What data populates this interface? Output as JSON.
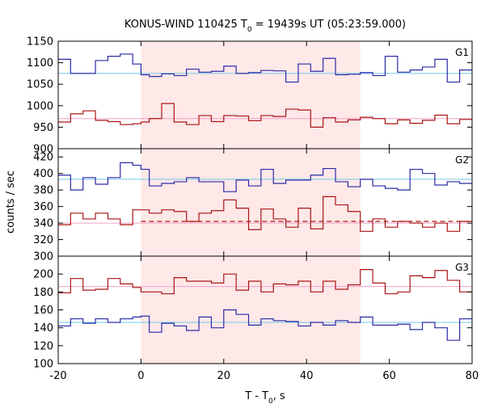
{
  "chart_data": {
    "type": "line",
    "title_parts": [
      "KONUS-WIND 110425 T",
      "0",
      " = 19439s UT (05:23:59.000)"
    ],
    "ylabel": "counts / sec",
    "xlabel_parts": [
      "T - T",
      "0",
      ", s"
    ],
    "xlim": [
      -20,
      80
    ],
    "xticks": [
      -20,
      0,
      20,
      40,
      60,
      80
    ],
    "xtick_labels": [
      "-20",
      "0",
      "20",
      "40",
      "60",
      "80"
    ],
    "highlight": {
      "x_start": 0,
      "x_end": 53,
      "color": "#ffe8e8"
    },
    "colors": {
      "blue": "#2a2aa8",
      "red": "#aa1414",
      "blue_ref": "#70c8e8",
      "red_ref": "#f0a0c8"
    },
    "bin_edges": [
      -20,
      -17,
      -14,
      -11,
      -8,
      -5,
      -2,
      0,
      2,
      5,
      8,
      11,
      14,
      17,
      20,
      23,
      26,
      29,
      32,
      35,
      38,
      41,
      44,
      47,
      50,
      53,
      56,
      59,
      62,
      65,
      68,
      71,
      74,
      77,
      80
    ],
    "panels": [
      {
        "label": "G1",
        "ylim": [
          900,
          1150
        ],
        "yticks": [
          900,
          950,
          1000,
          1050,
          1100,
          1150
        ],
        "ytick_labels": [
          "900",
          "950",
          "1000",
          "1050",
          "1100",
          "1150"
        ],
        "series": [
          {
            "color_key": "blue",
            "ref": 1075,
            "values": [
              1108,
              1075,
              1075,
              1105,
              1115,
              1120,
              1097,
              1072,
              1068,
              1074,
              1070,
              1085,
              1078,
              1080,
              1092,
              1075,
              1077,
              1082,
              1081,
              1055,
              1097,
              1080,
              1110,
              1072,
              1073,
              1077,
              1070,
              1115,
              1078,
              1083,
              1090,
              1108,
              1055,
              1083
            ]
          },
          {
            "color_key": "red",
            "ref": 970,
            "values": [
              962,
              981,
              988,
              966,
              963,
              956,
              958,
              962,
              970,
              1005,
              962,
              956,
              977,
              963,
              977,
              976,
              965,
              977,
              975,
              992,
              990,
              950,
              972,
              962,
              967,
              973,
              970,
              958,
              967,
              959,
              966,
              978,
              958,
              968
            ]
          }
        ]
      },
      {
        "label": "G2",
        "ylim": [
          300,
          430
        ],
        "yticks": [
          300,
          320,
          340,
          360,
          380,
          400,
          420
        ],
        "ytick_labels": [
          "300",
          "320",
          "340",
          "360",
          "380",
          "400",
          "420"
        ],
        "series": [
          {
            "color_key": "blue",
            "ref": 393,
            "values": [
              398,
              380,
              395,
              387,
              395,
              413,
              410,
              405,
              385,
              388,
              390,
              395,
              390,
              390,
              378,
              392,
              385,
              405,
              388,
              392,
              392,
              398,
              406,
              390,
              384,
              393,
              385,
              382,
              380,
              405,
              400,
              386,
              390,
              388
            ]
          },
          {
            "color_key": "red",
            "ref": 340,
            "dashed_ref": 342,
            "dashed_range": [
              0,
              80
            ],
            "values": [
              338,
              352,
              345,
              352,
              345,
              338,
              356,
              356,
              352,
              356,
              354,
              342,
              352,
              355,
              368,
              358,
              332,
              357,
              345,
              335,
              358,
              333,
              372,
              362,
              354,
              330,
              345,
              335,
              342,
              340,
              335,
              340,
              330,
              342
            ]
          }
        ]
      },
      {
        "label": "G3",
        "ylim": [
          100,
          220
        ],
        "yticks": [
          100,
          120,
          140,
          160,
          180,
          200
        ],
        "ytick_labels": [
          "100",
          "120",
          "140",
          "160",
          "180",
          "200"
        ],
        "series": [
          {
            "color_key": "red",
            "ref": 186,
            "values": [
              179,
              195,
              182,
              183,
              195,
              189,
              185,
              180,
              180,
              178,
              196,
              192,
              192,
              190,
              200,
              182,
              192,
              180,
              189,
              188,
              192,
              180,
              192,
              183,
              188,
              205,
              190,
              178,
              180,
              198,
              196,
              204,
              193,
              180
            ]
          },
          {
            "color_key": "blue",
            "ref": 146,
            "values": [
              142,
              150,
              145,
              150,
              146,
              150,
              152,
              153,
              135,
              145,
              142,
              137,
              152,
              140,
              160,
              155,
              143,
              150,
              148,
              147,
              142,
              146,
              143,
              148,
              146,
              152,
              143,
              143,
              144,
              138,
              146,
              140,
              126,
              150
            ]
          }
        ]
      }
    ]
  }
}
